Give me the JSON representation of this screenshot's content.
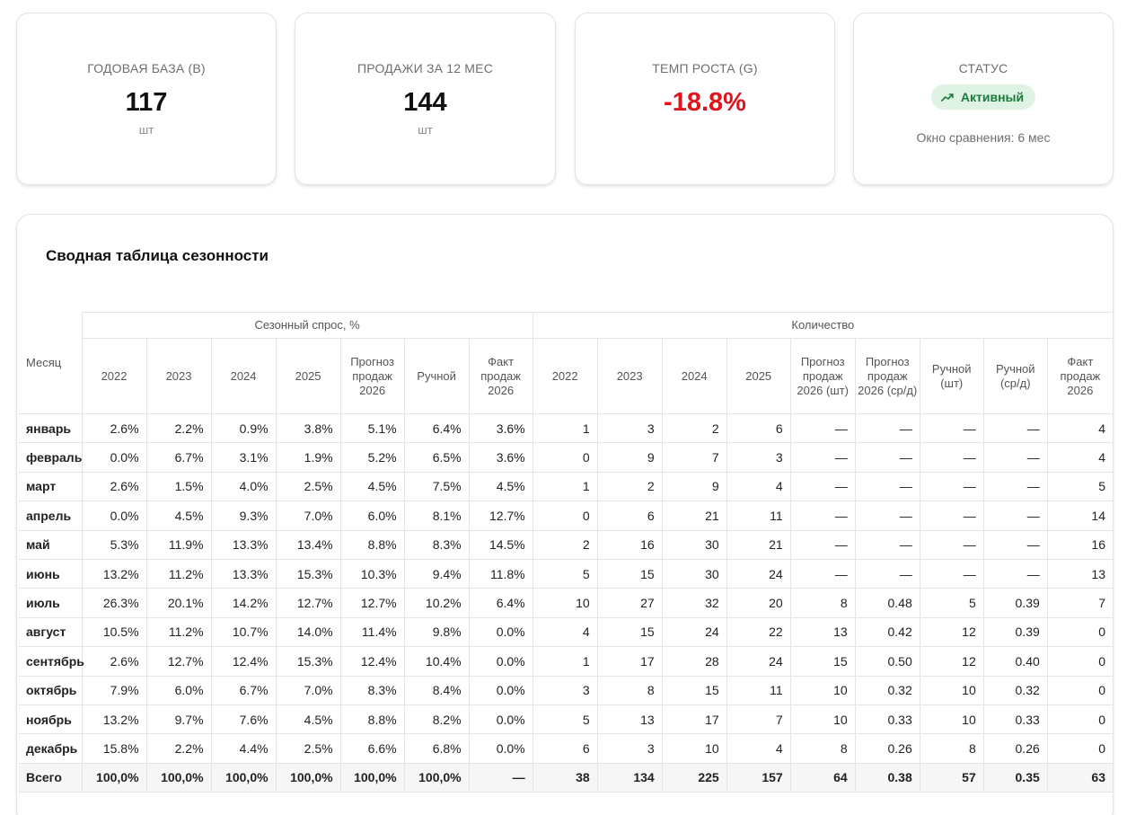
{
  "cards": [
    {
      "label": "ГОДОВАЯ БАЗА (B)",
      "value": "117",
      "unit": "шт"
    },
    {
      "label": "ПРОДАЖИ ЗА 12 МЕС",
      "value": "144",
      "unit": "шт"
    },
    {
      "label": "ТЕМП РОСТА (G)",
      "value": "-18.8%"
    },
    {
      "label": "СТАТУС",
      "badge": "Активный",
      "badge_icon": "trending-up-icon",
      "note": "Окно сравнения: 6 мес"
    }
  ],
  "colors": {
    "negative": "#e0141b",
    "badge_bg": "#dff3e4",
    "badge_text": "#1d7a3a"
  },
  "table": {
    "title": "Сводная таблица сезонности",
    "month_header": "Месяц",
    "group_headers": [
      "Сезонный спрос, %",
      "Количество"
    ],
    "columns": [
      "2022",
      "2023",
      "2024",
      "2025",
      "Прогноз продаж 2026",
      "Ручной",
      "Факт продаж 2026",
      "2022",
      "2023",
      "2024",
      "2025",
      "Прогноз продаж 2026 (шт)",
      "Прогноз продаж 2026 (ср/д)",
      "Ручной (шт)",
      "Ручной (ср/д)",
      "Факт продаж 2026"
    ],
    "rows": [
      {
        "month": "январь",
        "cells": [
          "2.6%",
          "2.2%",
          "0.9%",
          "3.8%",
          "5.1%",
          "6.4%",
          "3.6%",
          "1",
          "3",
          "2",
          "6",
          "—",
          "—",
          "—",
          "—",
          "4"
        ]
      },
      {
        "month": "февраль",
        "cells": [
          "0.0%",
          "6.7%",
          "3.1%",
          "1.9%",
          "5.2%",
          "6.5%",
          "3.6%",
          "0",
          "9",
          "7",
          "3",
          "—",
          "—",
          "—",
          "—",
          "4"
        ]
      },
      {
        "month": "март",
        "cells": [
          "2.6%",
          "1.5%",
          "4.0%",
          "2.5%",
          "4.5%",
          "7.5%",
          "4.5%",
          "1",
          "2",
          "9",
          "4",
          "—",
          "—",
          "—",
          "—",
          "5"
        ]
      },
      {
        "month": "апрель",
        "cells": [
          "0.0%",
          "4.5%",
          "9.3%",
          "7.0%",
          "6.0%",
          "8.1%",
          "12.7%",
          "0",
          "6",
          "21",
          "11",
          "—",
          "—",
          "—",
          "—",
          "14"
        ]
      },
      {
        "month": "май",
        "cells": [
          "5.3%",
          "11.9%",
          "13.3%",
          "13.4%",
          "8.8%",
          "8.3%",
          "14.5%",
          "2",
          "16",
          "30",
          "21",
          "—",
          "—",
          "—",
          "—",
          "16"
        ]
      },
      {
        "month": "июнь",
        "cells": [
          "13.2%",
          "11.2%",
          "13.3%",
          "15.3%",
          "10.3%",
          "9.4%",
          "11.8%",
          "5",
          "15",
          "30",
          "24",
          "—",
          "—",
          "—",
          "—",
          "13"
        ]
      },
      {
        "month": "июль",
        "cells": [
          "26.3%",
          "20.1%",
          "14.2%",
          "12.7%",
          "12.7%",
          "10.2%",
          "6.4%",
          "10",
          "27",
          "32",
          "20",
          "8",
          "0.48",
          "5",
          "0.39",
          "7"
        ]
      },
      {
        "month": "август",
        "cells": [
          "10.5%",
          "11.2%",
          "10.7%",
          "14.0%",
          "11.4%",
          "9.8%",
          "0.0%",
          "4",
          "15",
          "24",
          "22",
          "13",
          "0.42",
          "12",
          "0.39",
          "0"
        ]
      },
      {
        "month": "сентябрь",
        "cells": [
          "2.6%",
          "12.7%",
          "12.4%",
          "15.3%",
          "12.4%",
          "10.4%",
          "0.0%",
          "1",
          "17",
          "28",
          "24",
          "15",
          "0.50",
          "12",
          "0.40",
          "0"
        ]
      },
      {
        "month": "октябрь",
        "cells": [
          "7.9%",
          "6.0%",
          "6.7%",
          "7.0%",
          "8.3%",
          "8.4%",
          "0.0%",
          "3",
          "8",
          "15",
          "11",
          "10",
          "0.32",
          "10",
          "0.32",
          "0"
        ]
      },
      {
        "month": "ноябрь",
        "cells": [
          "13.2%",
          "9.7%",
          "7.6%",
          "4.5%",
          "8.8%",
          "8.2%",
          "0.0%",
          "5",
          "13",
          "17",
          "7",
          "10",
          "0.33",
          "10",
          "0.33",
          "0"
        ]
      },
      {
        "month": "декабрь",
        "cells": [
          "15.8%",
          "2.2%",
          "4.4%",
          "2.5%",
          "6.6%",
          "6.8%",
          "0.0%",
          "6",
          "3",
          "10",
          "4",
          "8",
          "0.26",
          "8",
          "0.26",
          "0"
        ]
      }
    ],
    "total": {
      "month": "Всего",
      "cells": [
        "100,0%",
        "100,0%",
        "100,0%",
        "100,0%",
        "100,0%",
        "100,0%",
        "—",
        "38",
        "134",
        "225",
        "157",
        "64",
        "0.38",
        "57",
        "0.35",
        "63"
      ]
    }
  }
}
